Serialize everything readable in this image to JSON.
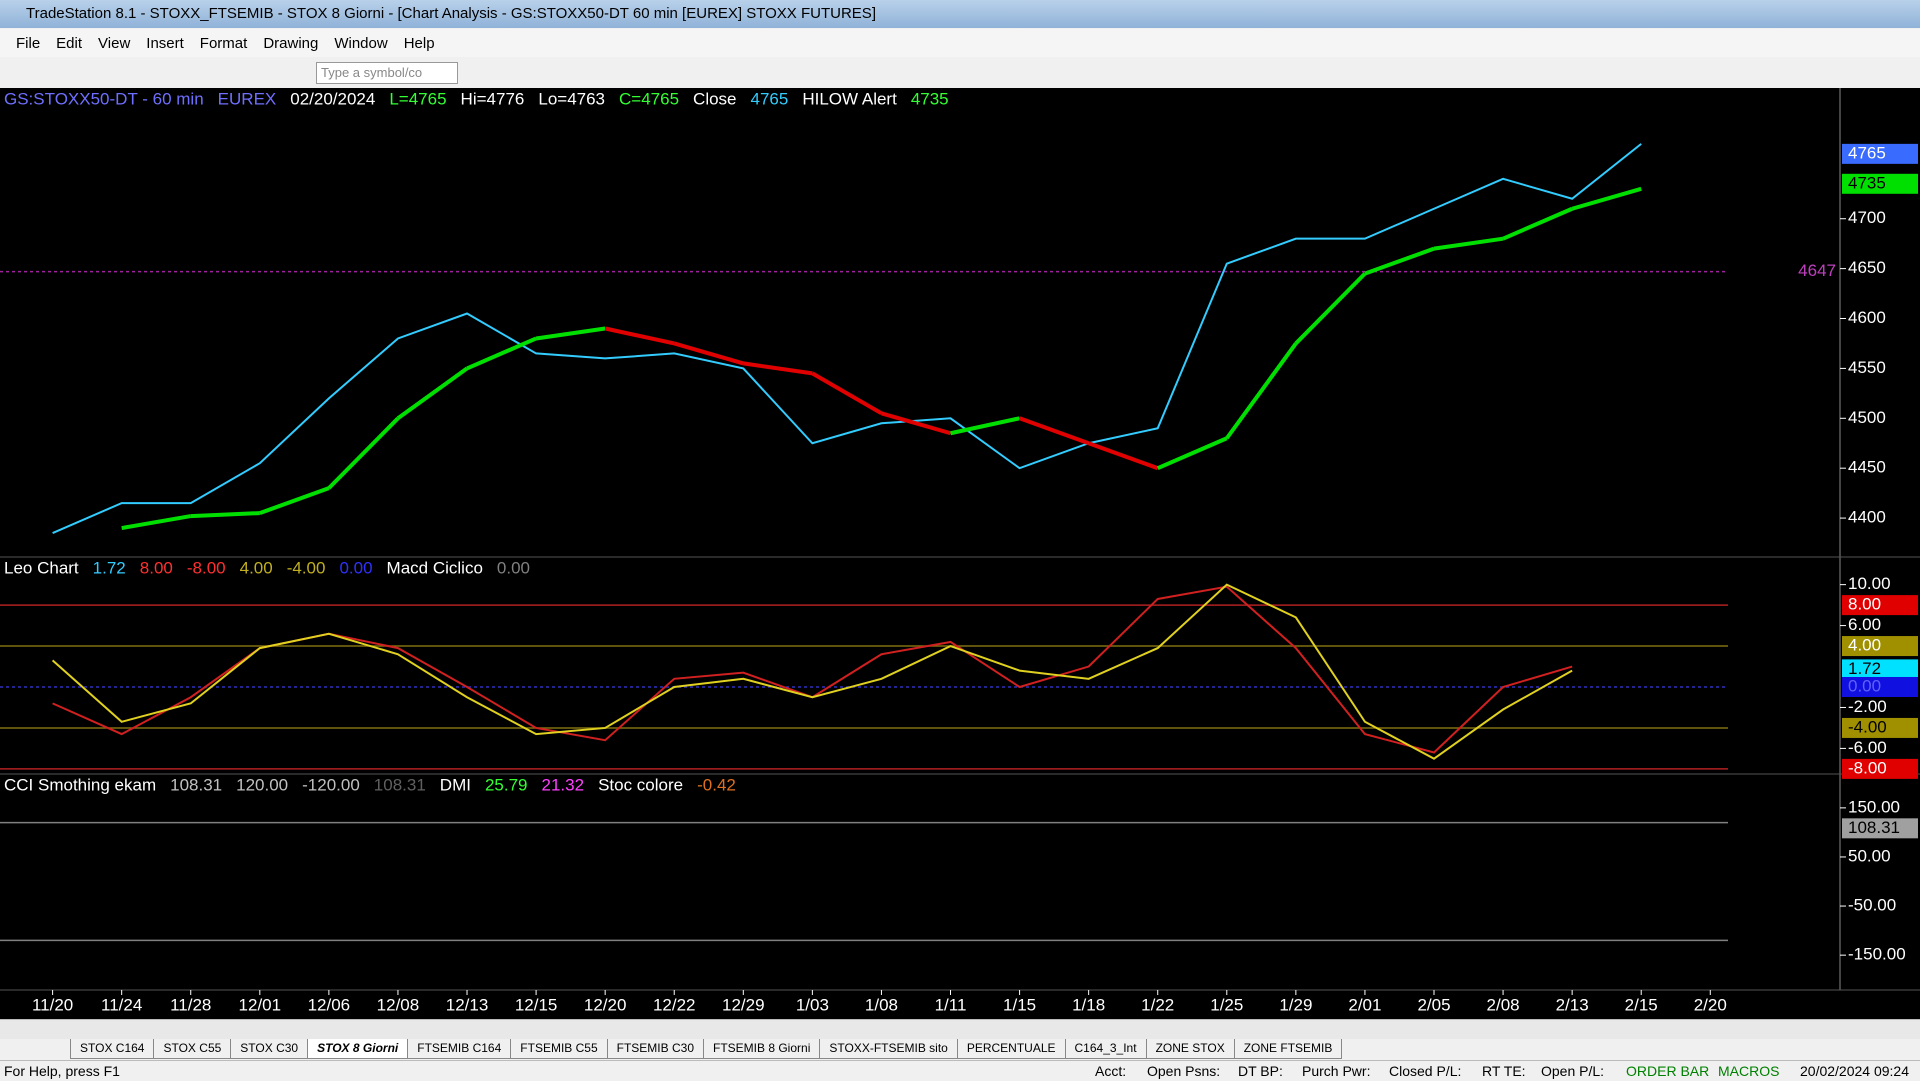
{
  "window": {
    "title": "TradeStation 8.1 - STOXX_FTSEMIB - STOX  8 Giorni - [Chart Analysis - GS:STOXX50-DT  60 min  [EUREX] STOXX FUTURES]"
  },
  "menu": [
    "File",
    "Edit",
    "View",
    "Insert",
    "Format",
    "Drawing",
    "Window",
    "Help"
  ],
  "toolbar": {
    "symbol_placeholder": "Type a symbol/co"
  },
  "chart_data": [
    {
      "type": "line",
      "legend": [
        {
          "text": "GS:STOXX50-DT - 60 min",
          "color": "#6f6fff"
        },
        {
          "text": "EUREX",
          "color": "#6f6fff"
        },
        {
          "text": "02/20/2024",
          "color": "#ffffff"
        },
        {
          "text": "L=4765",
          "color": "#33ff33"
        },
        {
          "text": "Hi=4776",
          "color": "#ffffff"
        },
        {
          "text": "Lo=4763",
          "color": "#ffffff"
        },
        {
          "text": "C=4765",
          "color": "#33ff33"
        },
        {
          "text": "Close",
          "color": "#ffffff"
        },
        {
          "text": "4765",
          "color": "#33ccff"
        },
        {
          "text": "HILOW Alert",
          "color": "#ffffff"
        },
        {
          "text": "4735",
          "color": "#33ff33"
        }
      ],
      "categories": [
        "11/20",
        "11/24",
        "11/28",
        "12/01",
        "12/06",
        "12/08",
        "12/13",
        "12/15",
        "12/20",
        "12/22",
        "12/29",
        "1/03",
        "1/08",
        "1/11",
        "1/15",
        "1/18",
        "1/22",
        "1/25",
        "1/29",
        "2/01",
        "2/05",
        "2/08",
        "2/13",
        "2/15",
        "2/20"
      ],
      "series": [
        {
          "color": "#33ccff",
          "values": [
            4385,
            4415,
            4415,
            4455,
            4520,
            4580,
            4605,
            4565,
            4560,
            4565,
            4550,
            4475,
            4495,
            4500,
            4450,
            4475,
            4490,
            4655,
            4680,
            4680,
            4710,
            4740,
            4720,
            4775,
            null
          ]
        },
        {
          "up_color": "#00e000",
          "down_color": "#e00000",
          "values": [
            null,
            4390,
            4402,
            4405,
            4430,
            4500,
            4550,
            4580,
            4590,
            4575,
            4555,
            4545,
            4505,
            4485,
            4500,
            4475,
            4450,
            4480,
            4575,
            4645,
            4670,
            4680,
            4710,
            4730,
            null
          ]
        }
      ],
      "ylim": [
        4361,
        4831
      ],
      "yticks": [
        4400,
        4450,
        4500,
        4550,
        4600,
        4650,
        4700
      ],
      "levels": [
        {
          "value": 4647,
          "color": "#a020a0",
          "dashed": true
        }
      ],
      "markers": [
        {
          "value": 4765,
          "color": "#3a6bff",
          "text_color": "#ffffff",
          "box": true
        },
        {
          "value": 4735,
          "color": "#00e000",
          "text_color": "#000000",
          "box": true
        },
        {
          "value": 4647,
          "color": "#c040c0",
          "box": false
        }
      ]
    },
    {
      "type": "line",
      "legend": [
        {
          "text": "Leo Chart",
          "color": "#ffffff"
        },
        {
          "text": "1.72",
          "color": "#33ccff"
        },
        {
          "text": "8.00",
          "color": "#ff3030"
        },
        {
          "text": "-8.00",
          "color": "#ff3030"
        },
        {
          "text": "4.00",
          "color": "#c0b020"
        },
        {
          "text": "-4.00",
          "color": "#c0b020"
        },
        {
          "text": "0.00",
          "color": "#3030ff"
        },
        {
          "text": "Macd Ciclico",
          "color": "#ffffff"
        },
        {
          "text": "0.00",
          "color": "#808080"
        }
      ],
      "series": [
        {
          "color": "#d02020",
          "values": [
            -1.6,
            -4.6,
            -1,
            3.8,
            5.2,
            3.8,
            0,
            -4,
            -5.2,
            0.8,
            1.4,
            -1,
            3.2,
            4.4,
            0,
            2,
            8.6,
            9.8,
            3.8,
            -4.6,
            -6.4,
            0,
            2,
            null,
            null
          ]
        },
        {
          "color": "#e0d020",
          "values": [
            2.6,
            -3.4,
            -1.6,
            3.8,
            5.2,
            3.2,
            -1,
            -4.6,
            -4,
            0,
            0.8,
            -1,
            0.8,
            4,
            1.6,
            0.8,
            3.8,
            10,
            6.8,
            -3.4,
            -7,
            -2.2,
            1.6,
            null,
            null
          ]
        }
      ],
      "ylim": [
        -8.5,
        12.7
      ],
      "yticks": [
        {
          "value": 10,
          "label": "10.00"
        },
        {
          "value": 6,
          "label": "6.00"
        },
        {
          "value": -2,
          "label": "-2.00"
        },
        {
          "value": -6,
          "label": "-6.00"
        }
      ],
      "levels": [
        {
          "value": 8,
          "color": "#b02020",
          "dashed": false
        },
        {
          "value": 4,
          "color": "#807010",
          "dashed": false
        },
        {
          "value": 0,
          "color": "#3030c0",
          "dashed": true
        },
        {
          "value": -4,
          "color": "#807010",
          "dashed": false
        },
        {
          "value": -8,
          "color": "#b02020",
          "dashed": false
        }
      ],
      "markers": [
        {
          "value": 8,
          "label": "8.00",
          "color": "#e00000",
          "text_color": "#ffffff",
          "box": true
        },
        {
          "value": 4,
          "label": "4.00",
          "color": "#a09000",
          "text_color": "#ffffff",
          "box": true
        },
        {
          "value": 1.72,
          "label": "1.72",
          "color": "#00e0ff",
          "text_color": "#000000",
          "box": true
        },
        {
          "value": 0,
          "label": "0.00",
          "color": "#1010e0",
          "text_color": "#6060ff",
          "box": true
        },
        {
          "value": -4,
          "label": "-4.00",
          "color": "#a09000",
          "text_color": "#000000",
          "box": true
        },
        {
          "value": -8,
          "label": "-8.00",
          "color": "#e00000",
          "text_color": "#ffffff",
          "box": true
        }
      ]
    },
    {
      "type": "line",
      "legend": [
        {
          "text": "CCI Smothing ekam",
          "color": "#ffffff"
        },
        {
          "text": "108.31",
          "color": "#c0c0c0"
        },
        {
          "text": "120.00",
          "color": "#c0c0c0"
        },
        {
          "text": "-120.00",
          "color": "#c0c0c0"
        },
        {
          "text": "108.31",
          "color": "#606060"
        },
        {
          "text": "DMI",
          "color": "#ffffff"
        },
        {
          "text": "25.79",
          "color": "#33ff33"
        },
        {
          "text": "21.32",
          "color": "#ff40ff"
        },
        {
          "text": "Stoc colore",
          "color": "#ffffff"
        },
        {
          "text": "-0.42",
          "color": "#e07020"
        }
      ],
      "series": [],
      "ylim": [
        -221,
        219
      ],
      "yticks": [
        {
          "value": 150,
          "label": "150.00"
        },
        {
          "value": 50,
          "label": "50.00"
        },
        {
          "value": -50,
          "label": "-50.00"
        },
        {
          "value": -150,
          "label": "-150.00"
        }
      ],
      "levels": [
        {
          "value": 120,
          "color": "#808080",
          "dashed": false
        },
        {
          "value": -120,
          "color": "#808080",
          "dashed": false
        }
      ],
      "markers": [
        {
          "value": 108.31,
          "label": "108.31",
          "color": "#a0a0a0",
          "text_color": "#000000",
          "box": true
        }
      ]
    }
  ],
  "tabs": [
    "STOX C164",
    "STOX C55",
    "STOX  C30",
    "STOX  8 Giorni",
    "FTSEMIB C164",
    "FTSEMIB C55",
    "FTSEMIB C30",
    "FTSEMIB  8 Giorni",
    "STOXX-FTSEMIB sito",
    "PERCENTUALE",
    "C164_3_Int",
    "ZONE STOX",
    "ZONE FTSEMIB"
  ],
  "status": {
    "help": "For Help, press F1",
    "fields": [
      "Acct:",
      "Open Psns:",
      "DT BP:",
      "Purch Pwr:",
      "Closed P/L:",
      "RT TE:",
      "Open P/L:"
    ],
    "order_bar": "ORDER BAR",
    "macros": "MACROS",
    "datetime": "20/02/2024 09:24"
  }
}
